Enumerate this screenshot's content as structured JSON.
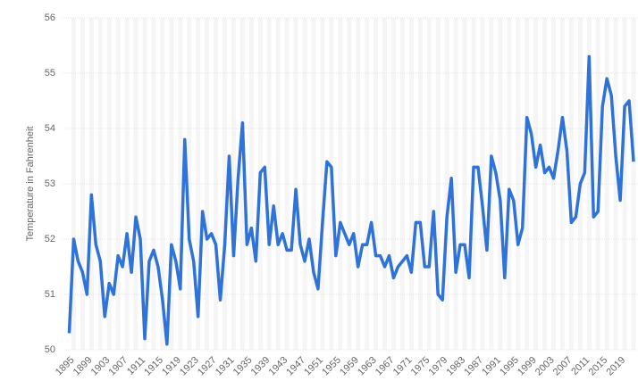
{
  "chart_data": {
    "type": "line",
    "y_label": "Temperature in Fahrenheit",
    "x": [
      1895,
      1896,
      1897,
      1898,
      1899,
      1900,
      1901,
      1902,
      1903,
      1904,
      1905,
      1906,
      1907,
      1908,
      1909,
      1910,
      1911,
      1912,
      1913,
      1914,
      1915,
      1916,
      1917,
      1918,
      1919,
      1920,
      1921,
      1922,
      1923,
      1924,
      1925,
      1926,
      1927,
      1928,
      1929,
      1930,
      1931,
      1932,
      1933,
      1934,
      1935,
      1936,
      1937,
      1938,
      1939,
      1940,
      1941,
      1942,
      1943,
      1944,
      1945,
      1946,
      1947,
      1948,
      1949,
      1950,
      1951,
      1952,
      1953,
      1954,
      1955,
      1956,
      1957,
      1958,
      1959,
      1960,
      1961,
      1962,
      1963,
      1964,
      1965,
      1966,
      1967,
      1968,
      1969,
      1970,
      1971,
      1972,
      1973,
      1974,
      1975,
      1976,
      1977,
      1978,
      1979,
      1980,
      1981,
      1982,
      1983,
      1984,
      1985,
      1986,
      1987,
      1988,
      1989,
      1990,
      1991,
      1992,
      1993,
      1994,
      1995,
      1996,
      1997,
      1998,
      1999,
      2000,
      2001,
      2002,
      2003,
      2004,
      2005,
      2006,
      2007,
      2008,
      2009,
      2010,
      2011,
      2012,
      2013,
      2014,
      2015,
      2016,
      2017,
      2018,
      2019,
      2020,
      2021,
      2022
    ],
    "series": [
      {
        "name": "Temperature",
        "color": "#2f72d8",
        "values": [
          50.3,
          52.0,
          51.6,
          51.4,
          51.0,
          52.8,
          51.9,
          51.6,
          50.6,
          51.2,
          51.0,
          51.7,
          51.5,
          52.1,
          51.4,
          52.4,
          52.0,
          50.2,
          51.6,
          51.8,
          51.5,
          50.9,
          50.1,
          51.9,
          51.6,
          51.1,
          53.8,
          52.0,
          51.6,
          50.6,
          52.5,
          52.0,
          52.1,
          51.9,
          50.9,
          51.9,
          53.5,
          51.7,
          53.1,
          54.1,
          51.9,
          52.2,
          51.6,
          53.2,
          53.3,
          51.9,
          52.6,
          51.9,
          52.1,
          51.8,
          51.8,
          52.9,
          51.9,
          51.6,
          52.0,
          51.4,
          51.1,
          52.3,
          53.4,
          53.3,
          51.7,
          52.3,
          52.1,
          51.9,
          52.1,
          51.5,
          51.9,
          51.9,
          52.3,
          51.7,
          51.7,
          51.5,
          51.7,
          51.3,
          51.5,
          51.6,
          51.7,
          51.4,
          52.3,
          52.3,
          51.5,
          51.5,
          52.5,
          51.0,
          50.9,
          52.4,
          53.1,
          51.4,
          51.9,
          51.9,
          51.3,
          53.3,
          53.3,
          52.6,
          51.8,
          53.5,
          53.2,
          52.7,
          51.3,
          52.9,
          52.7,
          51.9,
          52.2,
          54.2,
          53.9,
          53.3,
          53.7,
          53.2,
          53.3,
          53.1,
          53.6,
          54.2,
          53.6,
          52.3,
          52.4,
          53.0,
          53.2,
          55.3,
          52.4,
          52.5,
          54.4,
          54.9,
          54.6,
          53.5,
          52.7,
          54.4,
          54.5,
          53.4
        ]
      }
    ],
    "xlim": [
      1893.5,
      2023
    ],
    "xticks": [
      1895,
      1899,
      1903,
      1907,
      1911,
      1915,
      1919,
      1923,
      1927,
      1931,
      1935,
      1939,
      1943,
      1947,
      1951,
      1955,
      1959,
      1963,
      1967,
      1971,
      1975,
      1979,
      1983,
      1987,
      1991,
      1995,
      1999,
      2003,
      2007,
      2011,
      2015,
      2019
    ],
    "ylim": [
      50,
      56
    ],
    "yticks": [
      50,
      51,
      52,
      53,
      54,
      55,
      56
    ],
    "grid": true
  }
}
